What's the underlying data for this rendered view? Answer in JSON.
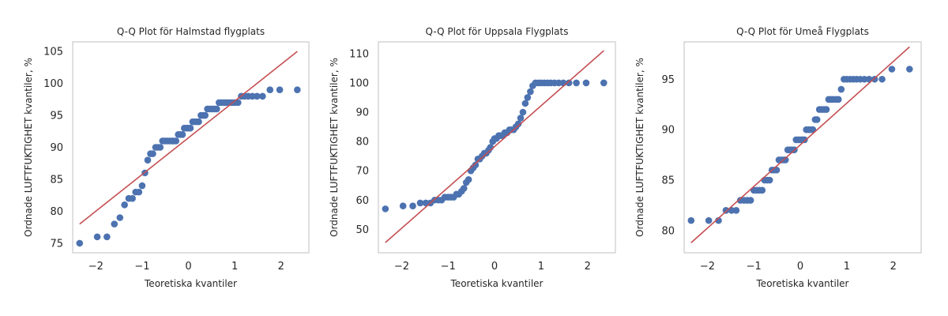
{
  "colors": {
    "point": "#4c72b0",
    "line": "#c44e52",
    "frame": "#cccccc",
    "text": "#262626"
  },
  "chart_data": [
    {
      "type": "scatter",
      "title": "Q-Q Plot för Halmstad flygplats",
      "xlabel": "Teoretiska kvantiler",
      "ylabel": "Ordnade LUFTFUKTIGHET kvantiler, %",
      "xlim": [
        -2.5,
        2.6
      ],
      "ylim": [
        73.5,
        106.5
      ],
      "xticks": [
        -2,
        -1,
        0,
        1,
        2
      ],
      "xtick_labels": [
        "−2",
        "−1",
        "0",
        "1",
        "2"
      ],
      "yticks": [
        75,
        80,
        85,
        90,
        95,
        100,
        105
      ],
      "ytick_labels": [
        "75",
        "80",
        "85",
        "90",
        "95",
        "100",
        "105"
      ],
      "grid": false,
      "fit_line": {
        "x": [
          -2.35,
          2.35
        ],
        "y": [
          78,
          105
        ]
      },
      "points": {
        "x": [
          -2.35,
          -1.97,
          -1.76,
          -1.6,
          -1.48,
          -1.38,
          -1.29,
          -1.21,
          -1.14,
          -1.07,
          -1.0,
          -0.94,
          -0.88,
          -0.82,
          -0.77,
          -0.71,
          -0.66,
          -0.61,
          -0.56,
          -0.51,
          -0.46,
          -0.41,
          -0.36,
          -0.32,
          -0.27,
          -0.22,
          -0.18,
          -0.13,
          -0.09,
          -0.04,
          0.0,
          0.04,
          0.09,
          0.13,
          0.18,
          0.22,
          0.27,
          0.32,
          0.36,
          0.41,
          0.46,
          0.51,
          0.56,
          0.61,
          0.66,
          0.71,
          0.77,
          0.82,
          0.88,
          0.94,
          1.0,
          1.07,
          1.14,
          1.21,
          1.29,
          1.38,
          1.48,
          1.6,
          1.76,
          1.97,
          2.35
        ],
        "y": [
          75,
          76,
          76,
          78,
          79,
          81,
          82,
          82,
          83,
          83,
          84,
          86,
          88,
          89,
          89,
          90,
          90,
          90,
          91,
          91,
          91,
          91,
          91,
          91,
          91,
          92,
          92,
          92,
          93,
          93,
          93,
          93,
          94,
          94,
          94,
          94,
          95,
          95,
          95,
          96,
          96,
          96,
          96,
          96,
          97,
          97,
          97,
          97,
          97,
          97,
          97,
          97,
          98,
          98,
          98,
          98,
          98,
          98,
          99,
          99,
          99
        ]
      }
    },
    {
      "type": "scatter",
      "title": "Q-Q Plot för Uppsala Flygplats",
      "xlabel": "Teoretiska kvantiler",
      "ylabel": "Ordnade LUFTFUKTIGHET kvantiler, %",
      "xlim": [
        -2.5,
        2.6
      ],
      "ylim": [
        42,
        114
      ],
      "xticks": [
        -2,
        -1,
        0,
        1,
        2
      ],
      "xtick_labels": [
        "−2",
        "−1",
        "0",
        "1",
        "2"
      ],
      "yticks": [
        50,
        60,
        70,
        80,
        90,
        100,
        110
      ],
      "ytick_labels": [
        "50",
        "60",
        "70",
        "80",
        "90",
        "100",
        "110"
      ],
      "grid": false,
      "fit_line": {
        "x": [
          -2.35,
          2.35
        ],
        "y": [
          45.5,
          111
        ]
      },
      "points": {
        "x": [
          -2.35,
          -1.97,
          -1.76,
          -1.6,
          -1.48,
          -1.38,
          -1.29,
          -1.21,
          -1.14,
          -1.07,
          -1.0,
          -0.94,
          -0.88,
          -0.82,
          -0.77,
          -0.71,
          -0.66,
          -0.61,
          -0.56,
          -0.51,
          -0.46,
          -0.41,
          -0.36,
          -0.32,
          -0.27,
          -0.22,
          -0.18,
          -0.13,
          -0.09,
          -0.04,
          0.0,
          0.04,
          0.09,
          0.13,
          0.18,
          0.22,
          0.27,
          0.32,
          0.36,
          0.41,
          0.46,
          0.51,
          0.56,
          0.61,
          0.66,
          0.71,
          0.77,
          0.82,
          0.88,
          0.94,
          1.0,
          1.07,
          1.14,
          1.21,
          1.29,
          1.38,
          1.48,
          1.6,
          1.76,
          1.97,
          2.35
        ],
        "y": [
          57,
          58,
          58,
          59,
          59,
          59,
          60,
          60,
          60,
          61,
          61,
          61,
          61,
          62,
          62,
          63,
          64,
          66,
          67,
          70,
          71,
          72,
          74,
          74,
          75,
          76,
          76,
          77,
          78,
          80,
          81,
          81,
          82,
          82,
          82,
          83,
          83,
          84,
          84,
          84,
          85,
          86,
          88,
          90,
          93,
          95,
          97,
          99,
          100,
          100,
          100,
          100,
          100,
          100,
          100,
          100,
          100,
          100,
          100,
          100,
          100
        ]
      }
    },
    {
      "type": "scatter",
      "title": "Q-Q Plot för Umeå Flygplats",
      "xlabel": "Teoretiska kvantiler",
      "ylabel": "Ordnade LUFTFUKTIGHET kvantiler, %",
      "xlim": [
        -2.5,
        2.6
      ],
      "ylim": [
        77.8,
        98.7
      ],
      "xticks": [
        -2,
        -1,
        0,
        1,
        2
      ],
      "xtick_labels": [
        "−2",
        "−1",
        "0",
        "1",
        "2"
      ],
      "yticks": [
        80,
        85,
        90,
        95
      ],
      "ytick_labels": [
        "80",
        "85",
        "90",
        "95"
      ],
      "grid": false,
      "fit_line": {
        "x": [
          -2.35,
          2.35
        ],
        "y": [
          78.8,
          98.2
        ]
      },
      "points": {
        "x": [
          -2.35,
          -1.97,
          -1.76,
          -1.6,
          -1.48,
          -1.38,
          -1.29,
          -1.21,
          -1.14,
          -1.07,
          -1.0,
          -0.94,
          -0.88,
          -0.82,
          -0.77,
          -0.71,
          -0.66,
          -0.61,
          -0.56,
          -0.51,
          -0.46,
          -0.41,
          -0.36,
          -0.32,
          -0.27,
          -0.22,
          -0.18,
          -0.13,
          -0.09,
          -0.04,
          0.0,
          0.04,
          0.09,
          0.13,
          0.18,
          0.22,
          0.27,
          0.32,
          0.36,
          0.41,
          0.46,
          0.51,
          0.56,
          0.61,
          0.66,
          0.71,
          0.77,
          0.82,
          0.88,
          0.94,
          1.0,
          1.07,
          1.14,
          1.21,
          1.29,
          1.38,
          1.48,
          1.6,
          1.76,
          1.97,
          2.35
        ],
        "y": [
          81,
          81,
          81,
          82,
          82,
          82,
          83,
          83,
          83,
          83,
          84,
          84,
          84,
          84,
          85,
          85,
          85,
          86,
          86,
          86,
          87,
          87,
          87,
          87,
          88,
          88,
          88,
          88,
          89,
          89,
          89,
          89,
          89,
          90,
          90,
          90,
          90,
          91,
          91,
          92,
          92,
          92,
          92,
          93,
          93,
          93,
          93,
          93,
          94,
          95,
          95,
          95,
          95,
          95,
          95,
          95,
          95,
          95,
          95,
          96,
          96
        ]
      }
    }
  ]
}
